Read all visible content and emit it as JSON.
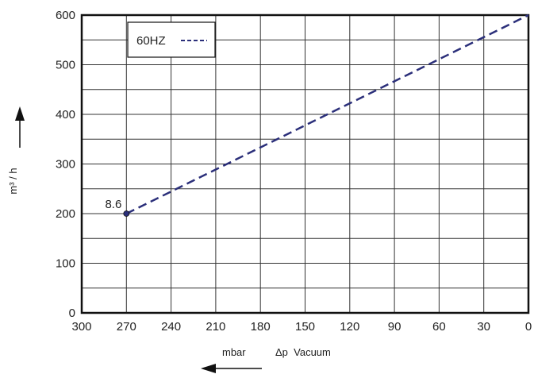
{
  "chart_data": {
    "type": "line",
    "title": "",
    "xlabel_unit": "mbar",
    "xlabel": "Δp  Vacuum",
    "ylabel": "m³ / h",
    "xlim": [
      300,
      0
    ],
    "ylim": [
      0,
      600
    ],
    "x_ticks": [
      "300",
      "270",
      "240",
      "210",
      "180",
      "150",
      "120",
      "90",
      "60",
      "30",
      "0"
    ],
    "y_ticks": [
      "0",
      "100",
      "200",
      "300",
      "400",
      "500",
      "600"
    ],
    "grid": true,
    "legend": {
      "position": "top-left",
      "label": "60HZ"
    },
    "series": [
      {
        "name": "60HZ",
        "style": "dashed",
        "color": "#2b2f7a",
        "points": [
          {
            "x": 270,
            "y": 200
          },
          {
            "x": 0,
            "y": 600
          }
        ]
      }
    ],
    "annotations": [
      {
        "x": 270,
        "y": 200,
        "text": "8.6"
      }
    ]
  }
}
